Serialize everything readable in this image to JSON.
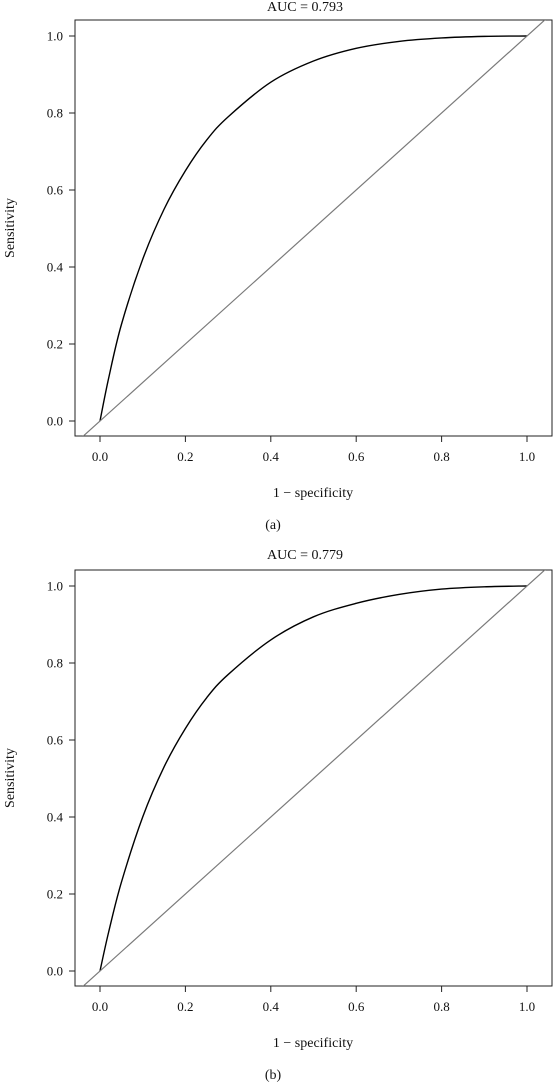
{
  "colors": {
    "roc_curve": "#000000",
    "reference_line": "#7a7a7a",
    "frame": "#222222",
    "text": "#111111"
  },
  "chart_data": [
    {
      "type": "line",
      "panel": "(a)",
      "title": "AUC = 0.793",
      "xlabel": "1 − specificity",
      "ylabel": "Sensitivity",
      "xlim": [
        0,
        1
      ],
      "ylim": [
        0,
        1
      ],
      "x_ticks": [
        "0.0",
        "0.2",
        "0.4",
        "0.6",
        "0.8",
        "1.0"
      ],
      "y_ticks": [
        "0.0",
        "0.2",
        "0.4",
        "0.6",
        "0.8",
        "1.0"
      ],
      "grid": false,
      "legend": "none",
      "series": [
        {
          "role": "roc",
          "x": [
            0.0,
            0.02,
            0.05,
            0.1,
            0.15,
            0.2,
            0.25,
            0.3,
            0.4,
            0.5,
            0.6,
            0.7,
            0.8,
            0.9,
            1.0
          ],
          "y": [
            0.0,
            0.11,
            0.25,
            0.42,
            0.55,
            0.65,
            0.73,
            0.79,
            0.88,
            0.935,
            0.968,
            0.986,
            0.995,
            0.999,
            1.0
          ]
        },
        {
          "role": "reference",
          "x": [
            -0.05,
            1.05
          ],
          "y": [
            -0.05,
            1.05
          ]
        }
      ]
    },
    {
      "type": "line",
      "panel": "(b)",
      "title": "AUC = 0.779",
      "xlabel": "1 − specificity",
      "ylabel": "Sensitivity",
      "xlim": [
        0,
        1
      ],
      "ylim": [
        0,
        1
      ],
      "x_ticks": [
        "0.0",
        "0.2",
        "0.4",
        "0.6",
        "0.8",
        "1.0"
      ],
      "y_ticks": [
        "0.0",
        "0.2",
        "0.4",
        "0.6",
        "0.8",
        "1.0"
      ],
      "grid": false,
      "legend": "none",
      "series": [
        {
          "role": "roc",
          "x": [
            0.0,
            0.02,
            0.05,
            0.1,
            0.15,
            0.2,
            0.25,
            0.3,
            0.4,
            0.5,
            0.6,
            0.7,
            0.8,
            0.9,
            1.0
          ],
          "y": [
            0.0,
            0.1,
            0.23,
            0.4,
            0.53,
            0.63,
            0.71,
            0.77,
            0.86,
            0.92,
            0.955,
            0.978,
            0.992,
            0.998,
            1.0
          ]
        },
        {
          "role": "reference",
          "x": [
            -0.05,
            1.05
          ],
          "y": [
            -0.05,
            1.05
          ]
        }
      ]
    }
  ]
}
